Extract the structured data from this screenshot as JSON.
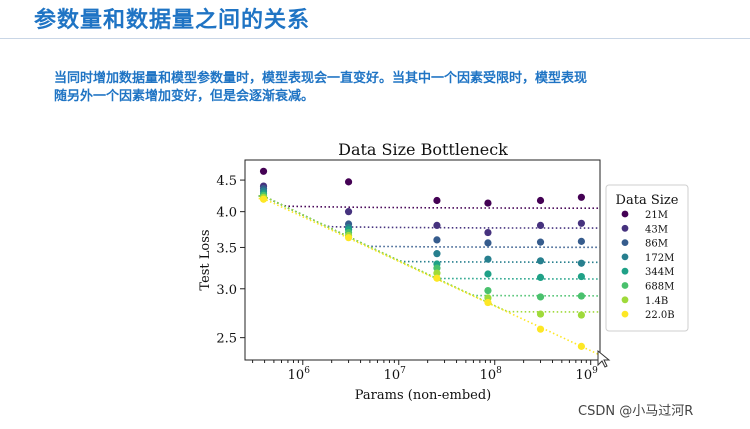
{
  "slide": {
    "title": "参数量和数据量之间的关系",
    "description_lines": [
      "当同时增加数据量和模型参数量时，模型表现会一直变好。当其中一个因素受限时，模型表现",
      "随另外一个因素增加变好，但是会逐渐衰减。"
    ],
    "watermark": "CSDN @小马过河R"
  },
  "chart_data": {
    "type": "scatter",
    "title": "Data Size Bottleneck",
    "xlabel": "Params (non-embed)",
    "ylabel": "Test Loss",
    "x_scale": "log",
    "y_scale": "log",
    "xlim": [
      250000,
      1250000000
    ],
    "ylim": [
      2.3,
      4.85
    ],
    "x_ticks": [
      1000000,
      10000000,
      100000000,
      1000000000
    ],
    "x_tick_labels": [
      {
        "base": "10",
        "exp": "6"
      },
      {
        "base": "10",
        "exp": "7"
      },
      {
        "base": "10",
        "exp": "8"
      },
      {
        "base": "10",
        "exp": "9"
      }
    ],
    "y_ticks": [
      2.5,
      3.0,
      3.5,
      4.0,
      4.5
    ],
    "y_tick_labels": [
      "2.5",
      "3.0",
      "3.5",
      "4.0",
      "4.5"
    ],
    "legend_title": "Data Size",
    "legend_position": "outside-right",
    "grid": false,
    "x": [
      390000,
      3000000,
      25000000,
      85000000,
      300000000,
      800000000
    ],
    "series": [
      {
        "name": "21M",
        "color": "#440154",
        "values": [
          4.65,
          4.47,
          4.17,
          4.13,
          4.17,
          4.22
        ],
        "fit_floor": 4.05,
        "fit_start": 4.4
      },
      {
        "name": "43M",
        "color": "#46327e",
        "values": [
          4.4,
          4.0,
          3.8,
          3.7,
          3.8,
          3.83
        ],
        "fit_floor": 3.76,
        "fit_start": 4.37
      },
      {
        "name": "86M",
        "color": "#365c8d",
        "values": [
          4.36,
          3.82,
          3.6,
          3.56,
          3.57,
          3.58
        ],
        "fit_floor": 3.5,
        "fit_start": 4.34
      },
      {
        "name": "172M",
        "color": "#277f8e",
        "values": [
          4.32,
          3.77,
          3.42,
          3.35,
          3.33,
          3.3
        ],
        "fit_floor": 3.31,
        "fit_start": 4.31
      },
      {
        "name": "344M",
        "color": "#1fa187",
        "values": [
          4.28,
          3.74,
          3.29,
          3.17,
          3.13,
          3.14
        ],
        "fit_floor": 3.11,
        "fit_start": 4.28
      },
      {
        "name": "688M",
        "color": "#4ac16d",
        "values": [
          4.25,
          3.7,
          3.24,
          2.98,
          2.91,
          2.92
        ],
        "fit_floor": 2.92,
        "fit_start": 4.25
      },
      {
        "name": "1.4B",
        "color": "#9fda3a",
        "values": [
          4.22,
          3.66,
          3.18,
          2.9,
          2.73,
          2.72
        ],
        "fit_floor": 2.75,
        "fit_start": 4.22
      },
      {
        "name": "22.0B",
        "color": "#fde725",
        "values": [
          4.19,
          3.63,
          3.12,
          2.85,
          2.58,
          2.42
        ],
        "fit_floor": 0,
        "fit_start": 4.2
      }
    ]
  }
}
